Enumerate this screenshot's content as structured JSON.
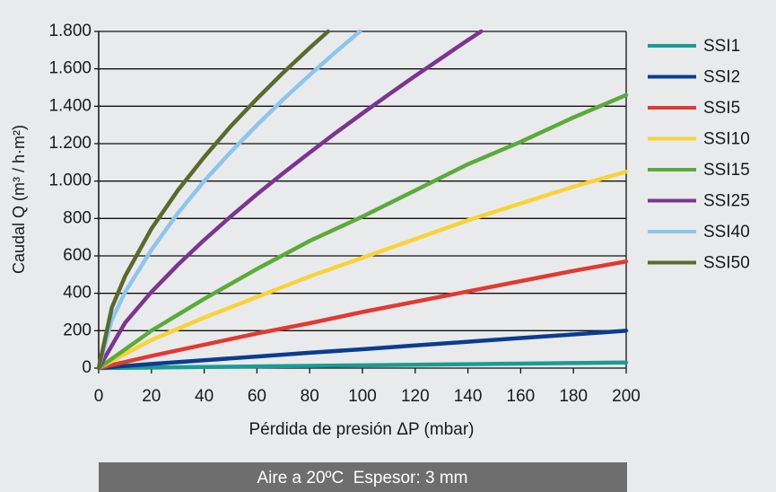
{
  "chart_data": {
    "type": "line",
    "xlabel": "Pérdida de presión ΔP (mbar)",
    "ylabel": "Caudal Q (m³ / h·m²)",
    "note": "Aire a 20ºC  Espesor: 3 mm",
    "xlim": [
      0,
      200
    ],
    "xticks": [
      0,
      20,
      40,
      60,
      80,
      100,
      120,
      140,
      160,
      180,
      200
    ],
    "ylim": [
      0,
      1800
    ],
    "yticks": [
      0,
      200,
      400,
      600,
      800,
      {
        "value": 1000,
        "label": "1.000"
      },
      {
        "value": 1200,
        "label": "1.200"
      },
      {
        "value": 1400,
        "label": "1.400"
      },
      {
        "value": 1600,
        "label": "1.600"
      },
      {
        "value": 1800,
        "label": "1.800"
      }
    ],
    "grid": true,
    "legend": "right",
    "series": [
      {
        "name": "SSI1",
        "color": "#1a9c94",
        "x": [
          0,
          20,
          40,
          60,
          80,
          100,
          120,
          140,
          160,
          180,
          200
        ],
        "values": [
          0,
          3,
          6,
          9,
          12,
          15,
          18,
          21,
          24,
          27,
          30
        ]
      },
      {
        "name": "SSI2",
        "color": "#0a3d8f",
        "x": [
          0,
          20,
          40,
          60,
          80,
          100,
          120,
          140,
          160,
          180,
          200
        ],
        "values": [
          0,
          22,
          42,
          62,
          82,
          101,
          121,
          141,
          161,
          180,
          200
        ]
      },
      {
        "name": "SSI5",
        "color": "#e03a33",
        "x": [
          0,
          20,
          40,
          60,
          80,
          100,
          120,
          140,
          160,
          180,
          200
        ],
        "values": [
          0,
          65,
          125,
          185,
          240,
          300,
          355,
          410,
          465,
          520,
          570
        ]
      },
      {
        "name": "SSI10",
        "color": "#f9d23a",
        "x": [
          0,
          20,
          40,
          60,
          80,
          100,
          120,
          140,
          160,
          180,
          200
        ],
        "values": [
          0,
          150,
          270,
          380,
          490,
          590,
          690,
          790,
          880,
          970,
          1050
        ]
      },
      {
        "name": "SSI15",
        "color": "#5aab3a",
        "x": [
          0,
          20,
          40,
          60,
          80,
          100,
          120,
          140,
          160,
          180,
          200
        ],
        "values": [
          0,
          200,
          370,
          530,
          680,
          810,
          950,
          1090,
          1210,
          1340,
          1460
        ]
      },
      {
        "name": "SSI25",
        "color": "#7b3590",
        "x": [
          0,
          10,
          20,
          30,
          40,
          50,
          60,
          70,
          80,
          90,
          100,
          110,
          120,
          130,
          140,
          145
        ],
        "values": [
          0,
          242,
          407,
          552,
          685,
          810,
          929,
          1043,
          1152,
          1259,
          1362,
          1463,
          1562,
          1658,
          1754,
          1800
        ]
      },
      {
        "name": "SSI40",
        "color": "#8ec5ec",
        "x": [
          0,
          5,
          10,
          20,
          30,
          40,
          50,
          60,
          70,
          80,
          90,
          99
        ],
        "values": [
          0,
          258,
          406,
          632,
          828,
          1000,
          1154,
          1299,
          1437,
          1567,
          1692,
          1800
        ]
      },
      {
        "name": "SSI50",
        "color": "#5a6a2f",
        "x": [
          0,
          5,
          10,
          20,
          30,
          40,
          50,
          60,
          70,
          80,
          87
        ],
        "values": [
          0,
          324,
          491,
          745,
          950,
          1128,
          1292,
          1440,
          1580,
          1712,
          1800
        ]
      }
    ]
  }
}
